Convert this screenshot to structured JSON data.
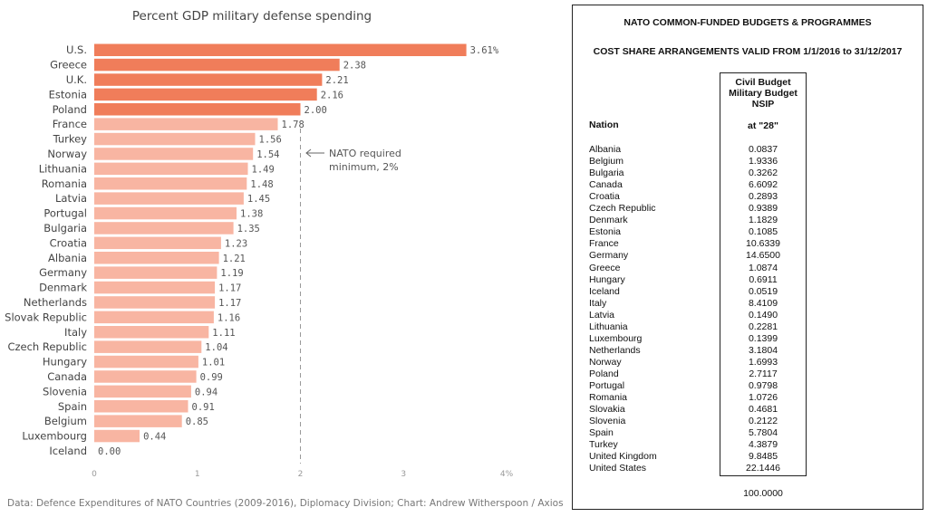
{
  "chart_data": {
    "type": "bar",
    "orientation": "horizontal",
    "title": "Percent GDP military defense spending",
    "categories": [
      "U.S.",
      "Greece",
      "U.K.",
      "Estonia",
      "Poland",
      "France",
      "Turkey",
      "Norway",
      "Lithuania",
      "Romania",
      "Latvia",
      "Portugal",
      "Bulgaria",
      "Croatia",
      "Albania",
      "Germany",
      "Denmark",
      "Netherlands",
      "Slovak Republic",
      "Italy",
      "Czech Republic",
      "Hungary",
      "Canada",
      "Slovenia",
      "Spain",
      "Belgium",
      "Luxembourg",
      "Iceland"
    ],
    "values": [
      3.61,
      2.38,
      2.21,
      2.16,
      2.0,
      1.78,
      1.56,
      1.54,
      1.49,
      1.48,
      1.45,
      1.38,
      1.35,
      1.23,
      1.21,
      1.19,
      1.17,
      1.17,
      1.16,
      1.11,
      1.04,
      1.01,
      0.99,
      0.94,
      0.91,
      0.85,
      0.44,
      0.0
    ],
    "value_labels": [
      "3.61%",
      "2.38",
      "2.21",
      "2.16",
      "2.00",
      "1.78",
      "1.56",
      "1.54",
      "1.49",
      "1.48",
      "1.45",
      "1.38",
      "1.35",
      "1.23",
      "1.21",
      "1.19",
      "1.17",
      "1.17",
      "1.16",
      "1.11",
      "1.04",
      "1.01",
      "0.99",
      "0.94",
      "0.91",
      "0.85",
      "0.44",
      "0.00"
    ],
    "xlim": [
      0,
      4
    ],
    "xticks": [
      "0",
      "1",
      "2",
      "3",
      "4%"
    ],
    "xlabel": "",
    "ylabel": "",
    "grid": false,
    "reference_line": {
      "value": 2,
      "label": "NATO required minimum, 2%"
    },
    "colors": {
      "above_threshold": "#f07d5a",
      "below_threshold": "#f8b5a2"
    }
  },
  "annotation": {
    "line1": "NATO required",
    "line2": "minimum, 2%"
  },
  "source": "Data: Defence Expenditures of NATO Countries (2009-2016), Diplomacy Division; Chart: Andrew Witherspoon / Axios",
  "table_panel": {
    "title": "NATO COMMON-FUNDED BUDGETS & PROGRAMMES",
    "subtitle": "COST SHARE ARRANGEMENTS VALID FROM 1/1/2016 to 31/12/2017",
    "col_header_lines": [
      "Civil Budget",
      "Military Budget",
      "NSIP"
    ],
    "col_header_sub": "at \"28\"",
    "nation_header": "Nation",
    "rows": [
      {
        "nation": "Albania",
        "value": "0.0837"
      },
      {
        "nation": "Belgium",
        "value": "1.9336"
      },
      {
        "nation": "Bulgaria",
        "value": "0.3262"
      },
      {
        "nation": "Canada",
        "value": "6.6092"
      },
      {
        "nation": "Croatia",
        "value": "0.2893"
      },
      {
        "nation": "Czech Republic",
        "value": "0.9389"
      },
      {
        "nation": "Denmark",
        "value": "1.1829"
      },
      {
        "nation": "Estonia",
        "value": "0.1085"
      },
      {
        "nation": "France",
        "value": "10.6339"
      },
      {
        "nation": "Germany",
        "value": "14.6500"
      },
      {
        "nation": "Greece",
        "value": "1.0874"
      },
      {
        "nation": "Hungary",
        "value": "0.6911"
      },
      {
        "nation": "Iceland",
        "value": "0.0519"
      },
      {
        "nation": "Italy",
        "value": "8.4109"
      },
      {
        "nation": "Latvia",
        "value": "0.1490"
      },
      {
        "nation": "Lithuania",
        "value": "0.2281"
      },
      {
        "nation": "Luxembourg",
        "value": "0.1399"
      },
      {
        "nation": "Netherlands",
        "value": "3.1804"
      },
      {
        "nation": "Norway",
        "value": "1.6993"
      },
      {
        "nation": "Poland",
        "value": "2.7117"
      },
      {
        "nation": "Portugal",
        "value": "0.9798"
      },
      {
        "nation": "Romania",
        "value": "1.0726"
      },
      {
        "nation": "Slovakia",
        "value": "0.4681"
      },
      {
        "nation": "Slovenia",
        "value": "0.2122"
      },
      {
        "nation": "Spain",
        "value": "5.7804"
      },
      {
        "nation": "Turkey",
        "value": "4.3879"
      },
      {
        "nation": "United Kingdom",
        "value": "9.8485"
      },
      {
        "nation": "United States",
        "value": "22.1446"
      }
    ],
    "total": "100.0000"
  }
}
